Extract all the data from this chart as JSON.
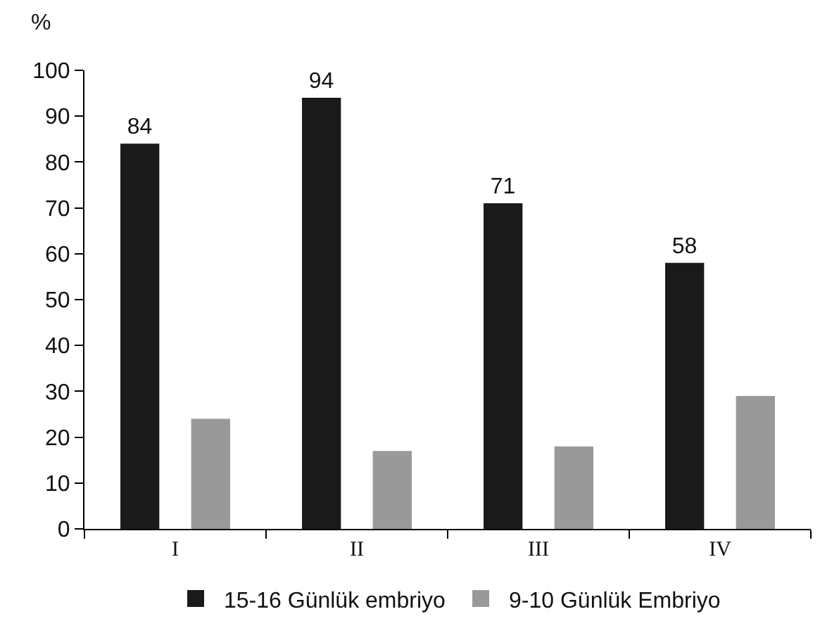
{
  "chart_data": {
    "type": "bar",
    "ylabel": "%",
    "categories": [
      "I",
      "II",
      "III",
      "IV"
    ],
    "series": [
      {
        "name": "15-16 Günlük embriyo",
        "color": "#1a1a1a",
        "values": [
          84,
          94,
          71,
          58
        ],
        "value_labels": [
          "84",
          "94",
          "71",
          "58"
        ]
      },
      {
        "name": "9-10 Günlük Embriyo",
        "color": "#999999",
        "values": [
          24,
          17,
          18,
          29
        ]
      }
    ],
    "ylim": [
      0,
      100
    ],
    "yticks": [
      0,
      10,
      20,
      30,
      40,
      50,
      60,
      70,
      80,
      90,
      100
    ],
    "grid": false,
    "legend": "bottom"
  }
}
